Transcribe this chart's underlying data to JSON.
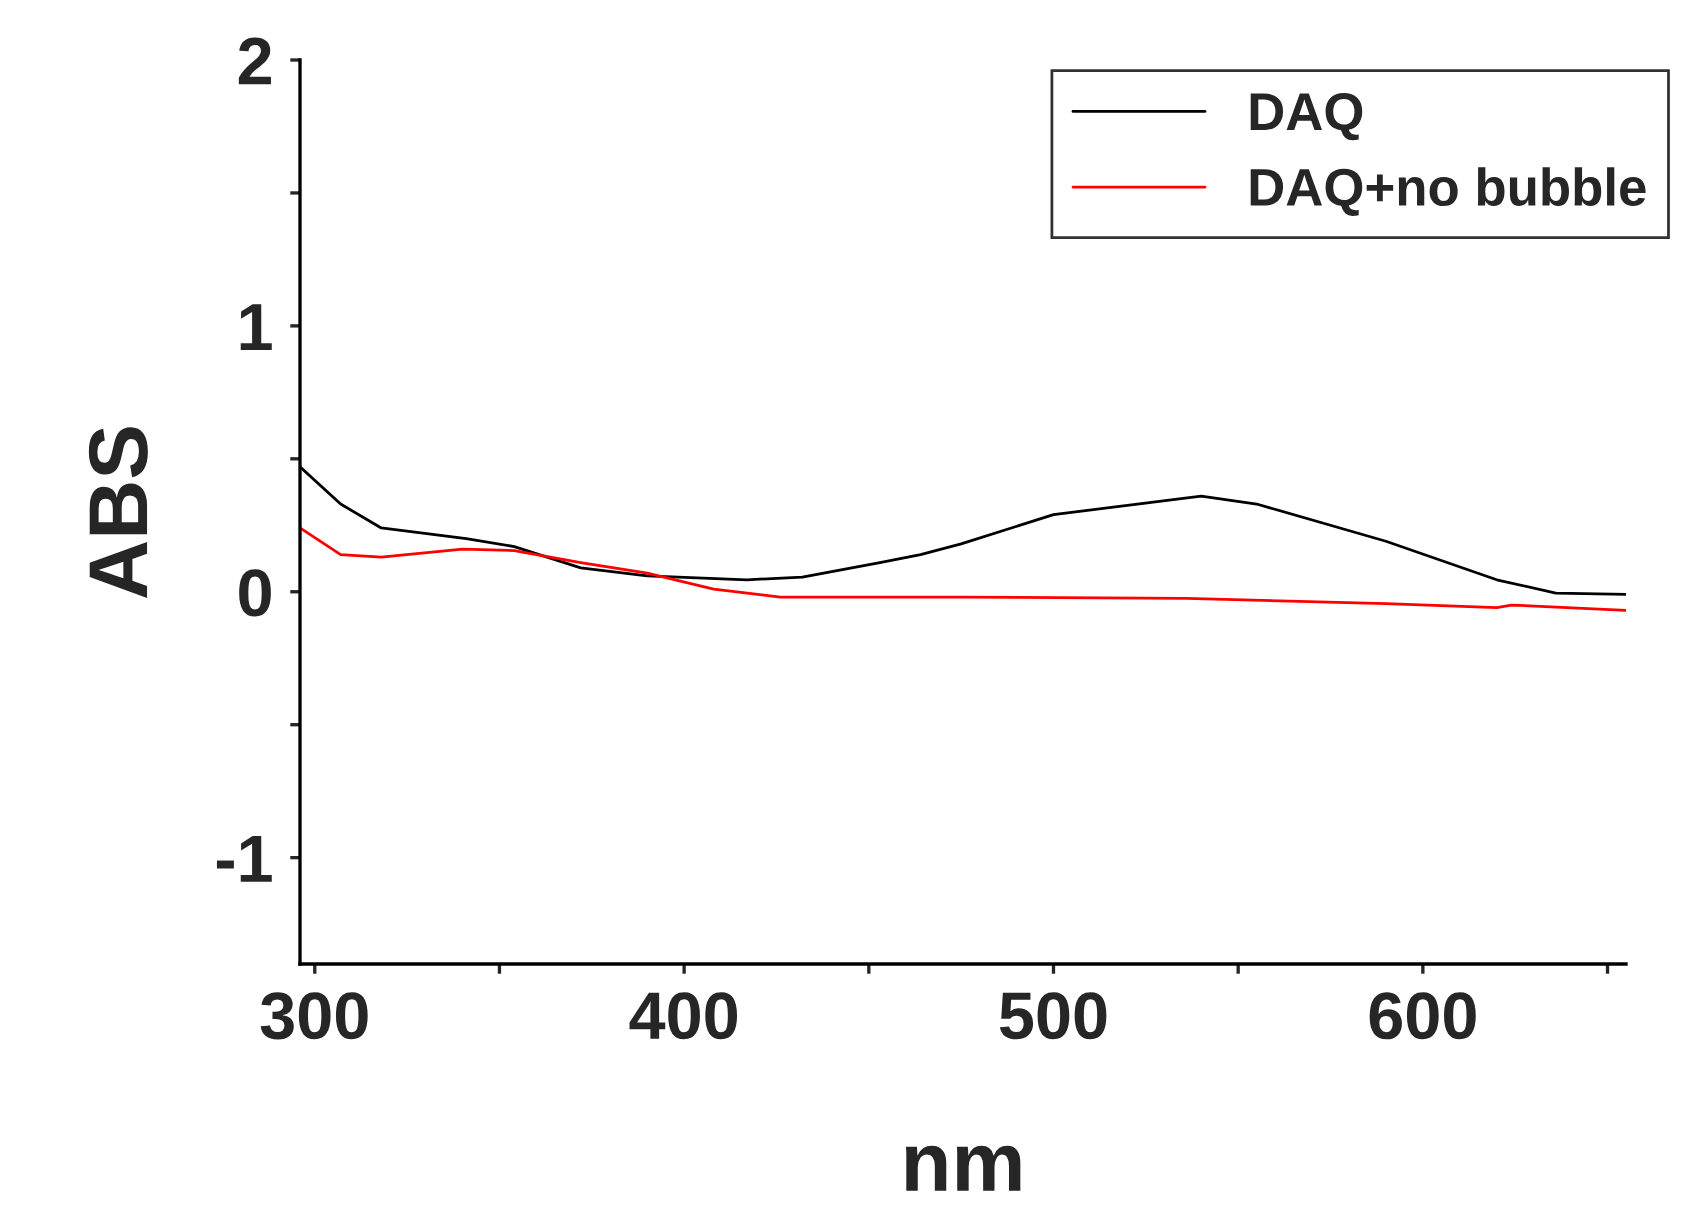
{
  "chart_data": {
    "type": "line",
    "xlabel": "nm",
    "ylabel": "ABS",
    "xlim": [
      296,
      655
    ],
    "ylim": [
      -1.4,
      2
    ],
    "xticks": [
      300,
      {
        "value": 350,
        "label": null
      },
      400,
      {
        "value": 450,
        "label": null
      },
      500,
      {
        "value": 550,
        "label": null
      },
      600,
      {
        "value": 650,
        "label": null
      }
    ],
    "yticks": [
      -1,
      {
        "value": -0.5,
        "label": null
      },
      0,
      {
        "value": 0.5,
        "label": null
      },
      1,
      {
        "value": 1.5,
        "label": null
      },
      2
    ],
    "grid": false,
    "legend": "top right",
    "marker": "none",
    "line_style": "solid",
    "series": [
      {
        "name": "DAQ",
        "color": "#000000",
        "x": [
          296,
          307,
          318,
          341,
          354,
          372,
          390,
          417,
          432,
          453,
          464,
          475,
          500,
          540,
          555,
          590,
          620,
          636,
          655
        ],
        "values": [
          0.47,
          0.33,
          0.24,
          0.2,
          0.17,
          0.09,
          0.06,
          0.045,
          0.055,
          0.11,
          0.14,
          0.18,
          0.29,
          0.36,
          0.33,
          0.19,
          0.045,
          -0.005,
          -0.01
        ]
      },
      {
        "name": "DAQ+no bubble",
        "color": "#ff0000",
        "x": [
          296,
          307,
          318,
          340,
          354,
          372,
          390,
          408,
          426,
          475,
          536,
          590,
          620,
          624,
          655
        ],
        "values": [
          0.24,
          0.14,
          0.13,
          0.16,
          0.155,
          0.11,
          0.07,
          0.01,
          -0.02,
          -0.02,
          -0.025,
          -0.045,
          -0.06,
          -0.05,
          -0.07
        ]
      }
    ]
  }
}
